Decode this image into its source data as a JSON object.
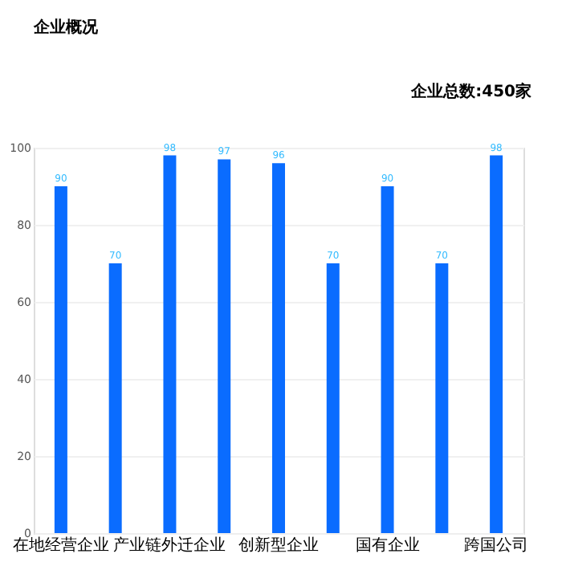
{
  "chart_data": {
    "type": "bar",
    "title": "企业概况",
    "annotations": [
      "企业总数:450家"
    ],
    "categories": [
      "在地经营企业",
      null,
      "产业链外迁企业",
      null,
      "创新型企业",
      null,
      "国有企业",
      null,
      "跨国公司"
    ],
    "values": [
      90,
      70,
      98,
      97,
      96,
      70,
      90,
      70,
      98
    ],
    "color": "#0a6cff",
    "ylim": [
      0,
      100
    ],
    "yticks": [
      0,
      20,
      40,
      60,
      80,
      100
    ],
    "grid": "y",
    "data_labels": true
  }
}
